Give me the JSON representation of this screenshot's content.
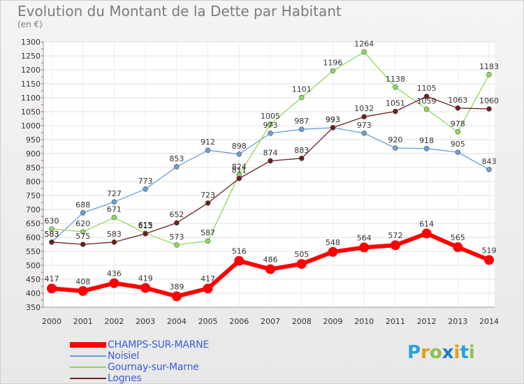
{
  "chart_data": {
    "type": "line",
    "title": "Evolution du Montant de la Dette par Habitant",
    "subtitle": "(en €)",
    "x": [
      "2000",
      "2001",
      "2002",
      "2003",
      "2004",
      "2005",
      "2006",
      "2007",
      "2008",
      "2009",
      "2010",
      "2011",
      "2012",
      "2013",
      "2014"
    ],
    "ylim": [
      350,
      1300
    ],
    "yticks": [
      350,
      400,
      450,
      500,
      550,
      600,
      650,
      700,
      750,
      800,
      850,
      900,
      950,
      1000,
      1050,
      1100,
      1150,
      1200,
      1250,
      1300
    ],
    "grid": true,
    "legend_position": "bottom-left",
    "series": [
      {
        "name": "CHAMPS-SUR-MARNE",
        "color": "#ff0000",
        "values": [
          417,
          408,
          436,
          419,
          389,
          417,
          516,
          486,
          505,
          548,
          564,
          572,
          614,
          565,
          519
        ]
      },
      {
        "name": "Noisiel",
        "color": "#6a9fd4",
        "values": [
          583,
          688,
          727,
          773,
          853,
          912,
          898,
          973,
          987,
          993,
          973,
          920,
          918,
          905,
          843
        ]
      },
      {
        "name": "Gournay-sur-Marne",
        "color": "#8fd85a",
        "values": [
          630,
          620,
          671,
          615,
          573,
          587,
          824,
          1005,
          1101,
          1196,
          1264,
          1138,
          1059,
          978,
          1183
        ]
      },
      {
        "name": "Lognes",
        "color": "#6b1f1f",
        "values": [
          583,
          575,
          583,
          613,
          652,
          723,
          811,
          874,
          883,
          993,
          1032,
          1051,
          1105,
          1063,
          1060
        ]
      }
    ]
  },
  "brand": {
    "text": "Proxiti"
  }
}
